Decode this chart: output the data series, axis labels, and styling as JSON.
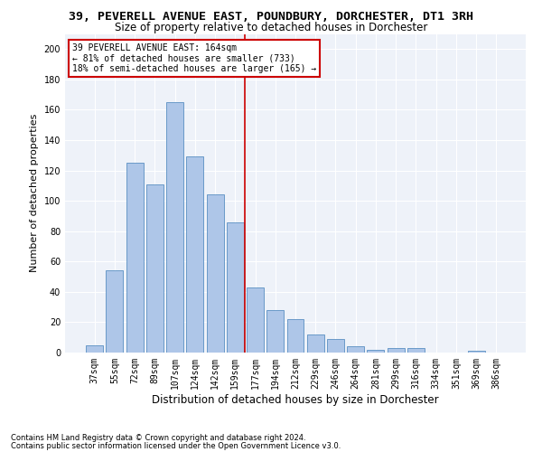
{
  "title": "39, PEVERELL AVENUE EAST, POUNDBURY, DORCHESTER, DT1 3RH",
  "subtitle": "Size of property relative to detached houses in Dorchester",
  "xlabel": "Distribution of detached houses by size in Dorchester",
  "ylabel": "Number of detached properties",
  "categories": [
    "37sqm",
    "55sqm",
    "72sqm",
    "89sqm",
    "107sqm",
    "124sqm",
    "142sqm",
    "159sqm",
    "177sqm",
    "194sqm",
    "212sqm",
    "229sqm",
    "246sqm",
    "264sqm",
    "281sqm",
    "299sqm",
    "316sqm",
    "334sqm",
    "351sqm",
    "369sqm",
    "386sqm"
  ],
  "values": [
    5,
    54,
    125,
    111,
    165,
    129,
    104,
    86,
    43,
    28,
    22,
    12,
    9,
    4,
    2,
    3,
    3,
    0,
    0,
    1,
    0
  ],
  "bar_color": "#aec6e8",
  "bar_edge_color": "#5a8fc2",
  "vline_index": 7.5,
  "vline_color": "#cc0000",
  "annotation_title": "39 PEVERELL AVENUE EAST: 164sqm",
  "annotation_line1": "← 81% of detached houses are smaller (733)",
  "annotation_line2": "18% of semi-detached houses are larger (165) →",
  "annotation_box_color": "#cc0000",
  "footnote1": "Contains HM Land Registry data © Crown copyright and database right 2024.",
  "footnote2": "Contains public sector information licensed under the Open Government Licence v3.0.",
  "bg_color": "#eef2f9",
  "ylim": [
    0,
    210
  ],
  "yticks": [
    0,
    20,
    40,
    60,
    80,
    100,
    120,
    140,
    160,
    180,
    200
  ],
  "title_fontsize": 9.5,
  "subtitle_fontsize": 8.5,
  "xlabel_fontsize": 8.5,
  "ylabel_fontsize": 8,
  "tick_fontsize": 7,
  "annot_fontsize": 7,
  "footnote_fontsize": 6
}
